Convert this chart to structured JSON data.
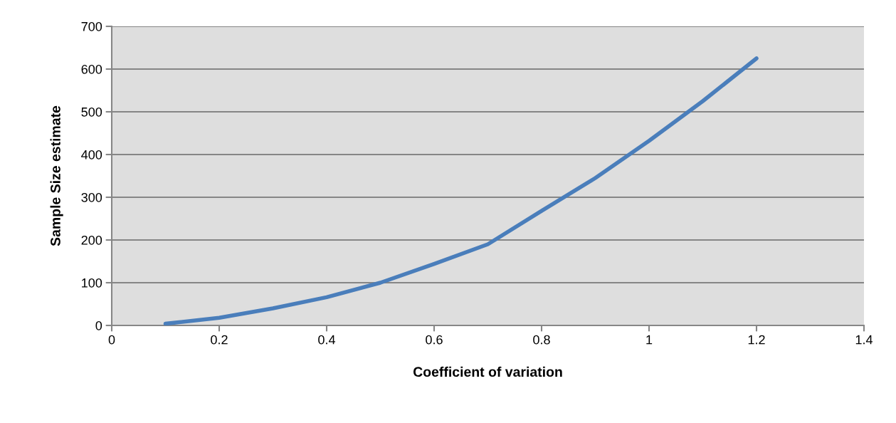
{
  "chart_data": {
    "type": "line",
    "xlabel": "Coefficient of variation",
    "ylabel": "Sample Size estimate",
    "x": [
      0.1,
      0.2,
      0.3,
      0.4,
      0.5,
      0.6,
      0.7,
      0.8,
      0.9,
      1.0,
      1.1,
      1.2
    ],
    "series": [
      {
        "color": "#4a7ebb",
        "values": [
          4,
          18,
          40,
          66,
          100,
          144,
          190,
          268,
          345,
          432,
          525,
          625
        ]
      }
    ],
    "xlim": [
      0,
      1.4
    ],
    "xticks": [
      0,
      0.2,
      0.4,
      0.6,
      0.8,
      1,
      1.2,
      1.4
    ],
    "ylim": [
      0,
      700
    ],
    "yticks": [
      0,
      100,
      200,
      300,
      400,
      500,
      600,
      700
    ],
    "grid": "y",
    "marker": "none",
    "line_style": "solid"
  }
}
